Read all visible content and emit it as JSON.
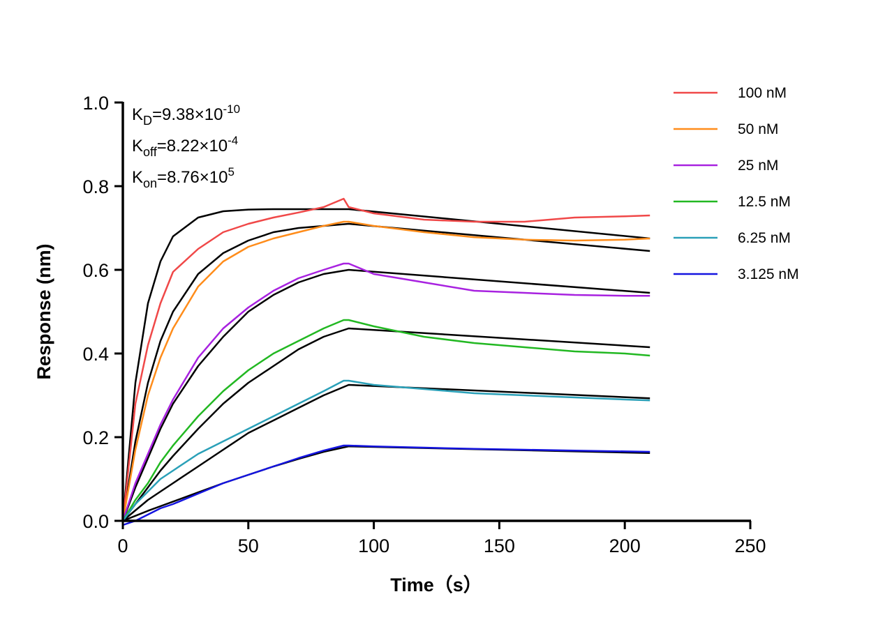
{
  "chart_data": {
    "type": "line",
    "xlabel": "Time（s）",
    "ylabel": "Response (nm)",
    "xlim": [
      0,
      250
    ],
    "ylim": [
      0,
      1.0
    ],
    "xticks": [
      "0",
      "50",
      "100",
      "150",
      "200",
      "250"
    ],
    "yticks": [
      "0.0",
      "0.2",
      "0.4",
      "0.6",
      "0.8",
      "1.0"
    ],
    "grid": false,
    "legend_position": "top-right",
    "annotations": [
      {
        "main": "K",
        "sub": "D",
        "rest": "=9.38×10",
        "sup": "-10"
      },
      {
        "main": "K",
        "sub": "off",
        "rest": "=8.22×10",
        "sup": "-4"
      },
      {
        "main": "K",
        "sub": "on",
        "rest": "=8.76×10",
        "sup": "5"
      }
    ],
    "x": [
      0,
      5,
      10,
      15,
      20,
      30,
      40,
      50,
      60,
      70,
      80,
      88,
      90,
      100,
      120,
      140,
      160,
      180,
      200,
      210
    ],
    "series": [
      {
        "name": "100 nM",
        "color": "#f04848",
        "values": [
          0,
          0.28,
          0.42,
          0.52,
          0.595,
          0.65,
          0.69,
          0.71,
          0.725,
          0.737,
          0.75,
          0.77,
          0.75,
          0.735,
          0.72,
          0.715,
          0.715,
          0.725,
          0.728,
          0.73
        ]
      },
      {
        "name": "50 nM",
        "color": "#ff8c1a",
        "values": [
          0,
          0.17,
          0.3,
          0.39,
          0.46,
          0.56,
          0.62,
          0.655,
          0.675,
          0.69,
          0.705,
          0.715,
          0.715,
          0.705,
          0.69,
          0.678,
          0.672,
          0.67,
          0.672,
          0.675
        ]
      },
      {
        "name": "25 nM",
        "color": "#a822e0",
        "values": [
          0,
          0.09,
          0.16,
          0.23,
          0.29,
          0.39,
          0.46,
          0.51,
          0.55,
          0.58,
          0.6,
          0.615,
          0.615,
          0.59,
          0.57,
          0.55,
          0.545,
          0.54,
          0.538,
          0.538
        ]
      },
      {
        "name": "12.5 nM",
        "color": "#22b822",
        "values": [
          0,
          0.05,
          0.09,
          0.14,
          0.18,
          0.25,
          0.31,
          0.36,
          0.4,
          0.43,
          0.46,
          0.48,
          0.48,
          0.465,
          0.44,
          0.425,
          0.415,
          0.405,
          0.4,
          0.395
        ]
      },
      {
        "name": "6.25 nM",
        "color": "#2aa0b8",
        "values": [
          0,
          0.04,
          0.07,
          0.1,
          0.12,
          0.16,
          0.19,
          0.22,
          0.25,
          0.28,
          0.31,
          0.335,
          0.335,
          0.325,
          0.315,
          0.305,
          0.3,
          0.295,
          0.29,
          0.288
        ]
      },
      {
        "name": "3.125 nM",
        "color": "#1414e0",
        "values": [
          -0.01,
          0.0,
          0.015,
          0.03,
          0.04,
          0.065,
          0.09,
          0.11,
          0.13,
          0.15,
          0.168,
          0.18,
          0.18,
          0.178,
          0.175,
          0.172,
          0.17,
          0.168,
          0.166,
          0.165
        ]
      }
    ],
    "fit": {
      "color": "#000000",
      "x": [
        0,
        5,
        10,
        15,
        20,
        30,
        40,
        50,
        60,
        70,
        80,
        90,
        210
      ],
      "curves": [
        [
          0,
          0.33,
          0.52,
          0.62,
          0.68,
          0.725,
          0.74,
          0.744,
          0.745,
          0.745,
          0.745,
          0.745,
          0.675
        ],
        [
          0,
          0.19,
          0.33,
          0.43,
          0.5,
          0.59,
          0.64,
          0.67,
          0.69,
          0.7,
          0.705,
          0.71,
          0.645
        ],
        [
          0,
          0.08,
          0.15,
          0.22,
          0.28,
          0.37,
          0.44,
          0.5,
          0.54,
          0.57,
          0.59,
          0.6,
          0.545
        ],
        [
          0,
          0.04,
          0.08,
          0.12,
          0.155,
          0.22,
          0.28,
          0.33,
          0.37,
          0.41,
          0.44,
          0.46,
          0.415
        ],
        [
          0,
          0.025,
          0.05,
          0.07,
          0.09,
          0.13,
          0.17,
          0.21,
          0.24,
          0.27,
          0.3,
          0.325,
          0.293
        ],
        [
          0,
          0.012,
          0.024,
          0.035,
          0.046,
          0.068,
          0.09,
          0.11,
          0.13,
          0.148,
          0.165,
          0.178,
          0.162
        ]
      ]
    }
  }
}
